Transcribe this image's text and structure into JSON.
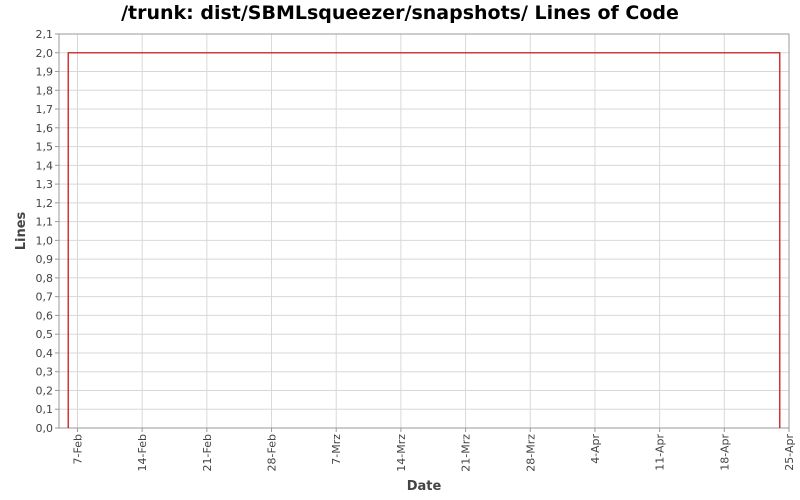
{
  "chart_data": {
    "type": "line",
    "title": "/trunk: dist/SBMLsqueezer/snapshots/ Lines of Code",
    "xlabel": "Date",
    "ylabel": "Lines",
    "x_ticks": [
      "7-Feb",
      "14-Feb",
      "21-Feb",
      "28-Feb",
      "7-Mrz",
      "14-Mrz",
      "21-Mrz",
      "28-Mrz",
      "4-Apr",
      "11-Apr",
      "18-Apr",
      "25-Apr"
    ],
    "y_ticks": [
      "0,0",
      "0,1",
      "0,2",
      "0,3",
      "0,4",
      "0,5",
      "0,6",
      "0,7",
      "0,8",
      "0,9",
      "1,0",
      "1,1",
      "1,2",
      "1,3",
      "1,4",
      "1,5",
      "1,6",
      "1,7",
      "1,8",
      "1,9",
      "2,0",
      "2,1"
    ],
    "ylim": [
      0,
      2.1
    ],
    "xlim": [
      "2009-02-05",
      "2009-04-25"
    ],
    "grid": true,
    "series": [
      {
        "color": "#cc0000",
        "step": true,
        "points": [
          {
            "x": "2009-02-06",
            "y": 0
          },
          {
            "x": "2009-02-06",
            "y": 2
          },
          {
            "x": "2009-04-24",
            "y": 2
          },
          {
            "x": "2009-04-24",
            "y": 0
          }
        ]
      }
    ]
  }
}
